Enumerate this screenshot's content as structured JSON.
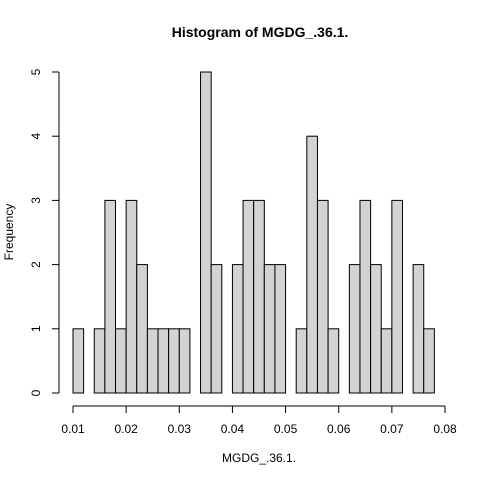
{
  "chart_data": {
    "type": "bar",
    "title": "Histogram of MGDG_.36.1.",
    "xlabel": "MGDG_.36.1.",
    "ylabel": "Frequency",
    "xlim": [
      0.01,
      0.08
    ],
    "ylim": [
      0,
      5
    ],
    "bin_width": 0.002,
    "bins_start": [
      0.01,
      0.012,
      0.014,
      0.016,
      0.018,
      0.02,
      0.022,
      0.024,
      0.026,
      0.028,
      0.03,
      0.032,
      0.034,
      0.036,
      0.038,
      0.04,
      0.042,
      0.044,
      0.046,
      0.048,
      0.05,
      0.052,
      0.054,
      0.056,
      0.058,
      0.06,
      0.062,
      0.064,
      0.066,
      0.068,
      0.07,
      0.072,
      0.074,
      0.076
    ],
    "values": [
      1,
      0,
      1,
      3,
      1,
      3,
      2,
      1,
      1,
      1,
      1,
      0,
      5,
      2,
      0,
      2,
      3,
      3,
      2,
      2,
      0,
      1,
      4,
      3,
      1,
      0,
      2,
      3,
      2,
      1,
      3,
      0,
      2,
      1
    ],
    "x_ticks": [
      "0.01",
      "0.02",
      "0.03",
      "0.04",
      "0.05",
      "0.06",
      "0.07",
      "0.08"
    ],
    "y_ticks": [
      "0",
      "1",
      "2",
      "3",
      "4",
      "5"
    ],
    "bar_fill": "#d3d3d3",
    "bar_stroke": "#000000",
    "grid": false
  }
}
